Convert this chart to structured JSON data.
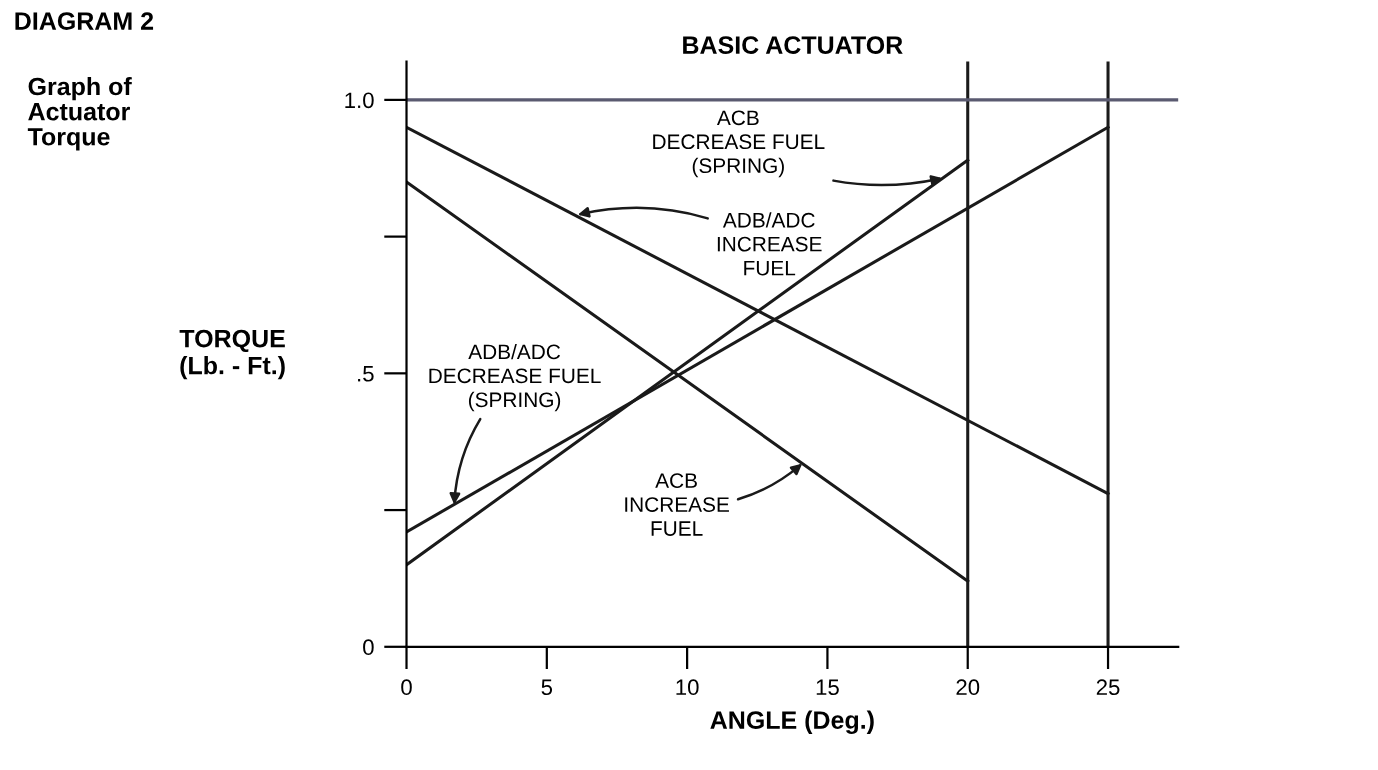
{
  "chart_data": {
    "type": "line",
    "title": "BASIC ACTUATOR",
    "xlabel": "ANGLE (Deg.)",
    "ylabel": "TORQUE\n(Lb. - Ft.)",
    "annotations": [
      "DIAGRAM 2",
      "Graph of\nActuator\nTorque",
      {
        "text": "ADB/ADC\nINCREASE\nFUEL",
        "x": 6.1,
        "y": 0.79
      },
      {
        "text": "ACB\nINCREASE\nFUEL",
        "x": 14.1,
        "y": 0.335
      },
      {
        "text": "ACB\nDECREASE FUEL\n(SPRING)",
        "x": 19.1,
        "y": 0.857
      },
      {
        "text": "ADB/ADC\nDECREASE FUEL\n(SPRING)",
        "x": 1.7,
        "y": 0.26
      }
    ],
    "series": [
      {
        "color": "#1a1a1a",
        "x": [
          0,
          25
        ],
        "values": [
          0.95,
          0.28
        ]
      },
      {
        "color": "#1a1a1a",
        "x": [
          0,
          20
        ],
        "values": [
          0.85,
          0.12
        ]
      },
      {
        "color": "#1a1a1a",
        "x": [
          0,
          20
        ],
        "values": [
          0.15,
          0.89
        ]
      },
      {
        "color": "#1a1a1a",
        "x": [
          0,
          25
        ],
        "values": [
          0.21,
          0.95
        ]
      }
    ],
    "xlim": [
      0,
      27.5
    ],
    "ylim": [
      0,
      1.07
    ],
    "xticks": [
      0,
      5,
      10,
      15,
      20,
      25
    ],
    "yticks": [
      0,
      {
        "value": 0.25,
        "label": null
      },
      {
        "value": 0.5,
        "label": ".5"
      },
      {
        "value": 0.75,
        "label": null
      },
      {
        "value": 1.0,
        "label": "1.0"
      }
    ],
    "ref_lines": [
      {
        "axis": "x",
        "value": 20,
        "color": "#1a1a1a"
      },
      {
        "axis": "x",
        "value": 25,
        "color": "#1a1a1a"
      },
      {
        "axis": "y",
        "value": 1.0,
        "color": "#5a5a70"
      }
    ],
    "grid": false,
    "legend": false,
    "marker": "none",
    "line_style": "solid"
  }
}
